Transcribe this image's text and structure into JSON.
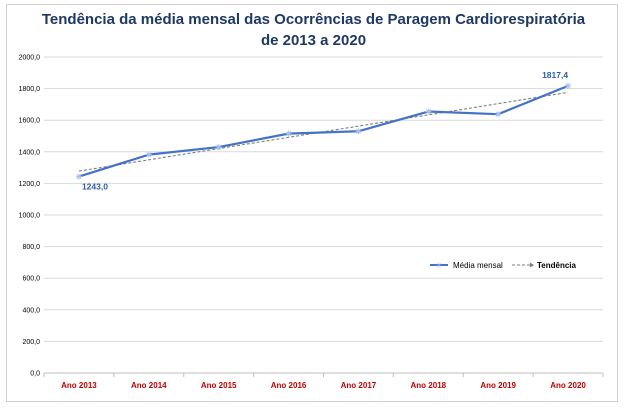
{
  "chart_data": {
    "type": "line",
    "title_line1": "Tendência da média mensal das Ocorrências de Paragem Cardiorespiratória",
    "title_line2": "de 2013 a 2020",
    "categories": [
      "Ano 2013",
      "Ano 2014",
      "Ano 2015",
      "Ano 2016",
      "Ano 2017",
      "Ano 2018",
      "Ano 2019",
      "Ano 2020"
    ],
    "series": [
      {
        "name": "Média mensal",
        "values": [
          1243.0,
          1382.0,
          1430.0,
          1515.0,
          1530.0,
          1655.0,
          1638.0,
          1817.4
        ],
        "color": "#4472c4"
      }
    ],
    "trend": {
      "name": "Tendência",
      "start": 1278.0,
      "end": 1776.0,
      "color": "#7f7f7f"
    },
    "data_labels": [
      {
        "index": 0,
        "text": "1243,0"
      },
      {
        "index": 7,
        "text": "1817,4"
      }
    ],
    "y_ticks": [
      "0,0",
      "200,0",
      "400,0",
      "600,0",
      "800,0",
      "1000,0",
      "1200,0",
      "1400,0",
      "1600,0",
      "1800,0",
      "2000,0"
    ],
    "ylim": [
      0,
      2000
    ],
    "legend_position": "right",
    "grid": true
  }
}
